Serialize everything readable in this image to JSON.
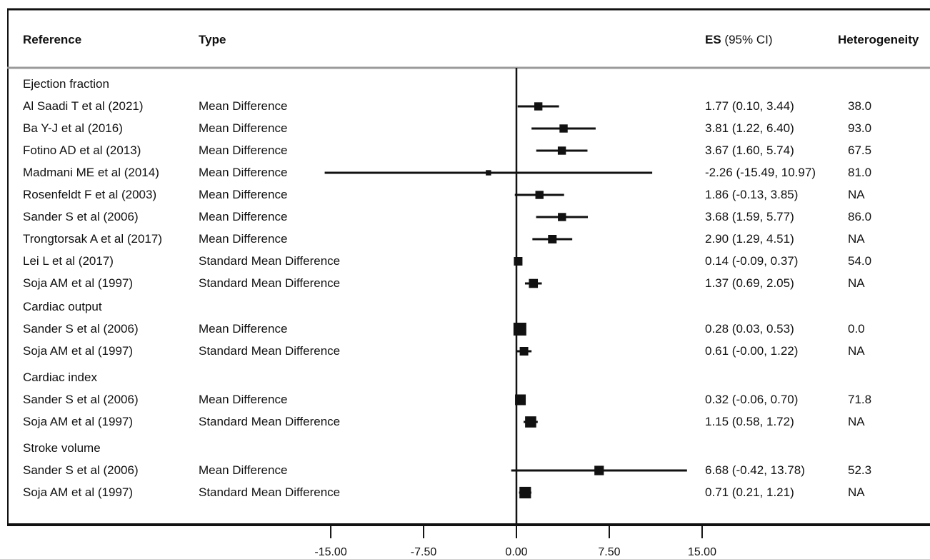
{
  "chart_data": {
    "type": "forest",
    "columns": {
      "reference": "Reference",
      "type": "Type",
      "es_bold": "ES",
      "es_rest": " (95% CI)",
      "heterogeneity": "Heterogeneity"
    },
    "xaxis": {
      "ticks": [
        -15.0,
        -7.5,
        0.0,
        7.5,
        15.0
      ],
      "tick_labels": [
        "-15.00",
        "-7.50",
        "0.00",
        "7.50",
        "15.00"
      ],
      "xlim": [
        -15,
        15
      ]
    },
    "groups": [
      {
        "name": "Ejection fraction",
        "rows": [
          {
            "reference": "Al Saadi T et al (2021)",
            "type": "Mean Difference",
            "es": 1.77,
            "lo": 0.1,
            "hi": 3.44,
            "es_label": "1.77 (0.10, 3.44)",
            "heterogeneity": "38.0",
            "weight": 0.45
          },
          {
            "reference": "Ba Y-J et al (2016)",
            "type": "Mean Difference",
            "es": 3.81,
            "lo": 1.22,
            "hi": 6.4,
            "es_label": "3.81 (1.22, 6.40)",
            "heterogeneity": "93.0",
            "weight": 0.45
          },
          {
            "reference": "Fotino AD et al (2013)",
            "type": "Mean Difference",
            "es": 3.67,
            "lo": 1.6,
            "hi": 5.74,
            "es_label": "3.67 (1.60, 5.74)",
            "heterogeneity": "67.5",
            "weight": 0.45
          },
          {
            "reference": "Madmani ME et al (2014)",
            "type": "Mean Difference",
            "es": -2.26,
            "lo": -15.49,
            "hi": 10.97,
            "es_label": "-2.26 (-15.49, 10.97)",
            "heterogeneity": "81.0",
            "weight": 0.12
          },
          {
            "reference": "Rosenfeldt F et al (2003)",
            "type": "Mean Difference",
            "es": 1.86,
            "lo": -0.13,
            "hi": 3.85,
            "es_label": "1.86 (-0.13, 3.85)",
            "heterogeneity": "NA",
            "weight": 0.45
          },
          {
            "reference": "Sander S et al (2006)",
            "type": "Mean Difference",
            "es": 3.68,
            "lo": 1.59,
            "hi": 5.77,
            "es_label": "3.68 (1.59, 5.77)",
            "heterogeneity": "86.0",
            "weight": 0.45
          },
          {
            "reference": "Trongtorsak A et al (2017)",
            "type": "Mean Difference",
            "es": 2.9,
            "lo": 1.29,
            "hi": 4.51,
            "es_label": "2.90 (1.29, 4.51)",
            "heterogeneity": "NA",
            "weight": 0.5
          },
          {
            "reference": "Lei L et al (2017)",
            "type": "Standard Mean Difference",
            "es": 0.14,
            "lo": -0.09,
            "hi": 0.37,
            "es_label": "0.14 (-0.09, 0.37)",
            "heterogeneity": "54.0",
            "weight": 0.5
          },
          {
            "reference": "Soja AM et al (1997)",
            "type": "Standard Mean Difference",
            "es": 1.37,
            "lo": 0.69,
            "hi": 2.05,
            "es_label": "1.37 (0.69, 2.05)",
            "heterogeneity": "NA",
            "weight": 0.55
          }
        ]
      },
      {
        "name": "Cardiac output",
        "rows": [
          {
            "reference": "Sander S et al (2006)",
            "type": "Mean Difference",
            "es": 0.28,
            "lo": 0.03,
            "hi": 0.53,
            "es_label": "0.28 (0.03, 0.53)",
            "heterogeneity": "0.0",
            "weight": 1.0
          },
          {
            "reference": "Soja AM et al (1997)",
            "type": "Standard Mean Difference",
            "es": 0.61,
            "lo": -0.0,
            "hi": 1.22,
            "es_label": "0.61 (-0.00, 1.22)",
            "heterogeneity": "NA",
            "weight": 0.5
          }
        ]
      },
      {
        "name": "Cardiac index",
        "rows": [
          {
            "reference": "Sander S et al (2006)",
            "type": "Mean Difference",
            "es": 0.32,
            "lo": -0.06,
            "hi": 0.7,
            "es_label": "0.32 (-0.06, 0.70)",
            "heterogeneity": "71.8",
            "weight": 0.75
          },
          {
            "reference": "Soja AM et al (1997)",
            "type": "Standard Mean Difference",
            "es": 1.15,
            "lo": 0.58,
            "hi": 1.72,
            "es_label": "1.15 (0.58, 1.72)",
            "heterogeneity": "NA",
            "weight": 0.8
          }
        ]
      },
      {
        "name": "Stroke volume",
        "rows": [
          {
            "reference": "Sander S et al (2006)",
            "type": "Mean Difference",
            "es": 6.68,
            "lo": -0.42,
            "hi": 13.78,
            "es_label": "6.68 (-0.42, 13.78)",
            "heterogeneity": "52.3",
            "weight": 0.6
          },
          {
            "reference": "Soja AM et al (1997)",
            "type": "Standard Mean Difference",
            "es": 0.71,
            "lo": 0.21,
            "hi": 1.21,
            "es_label": "0.71 (0.21, 1.21)",
            "heterogeneity": "NA",
            "weight": 0.85
          }
        ]
      }
    ]
  }
}
